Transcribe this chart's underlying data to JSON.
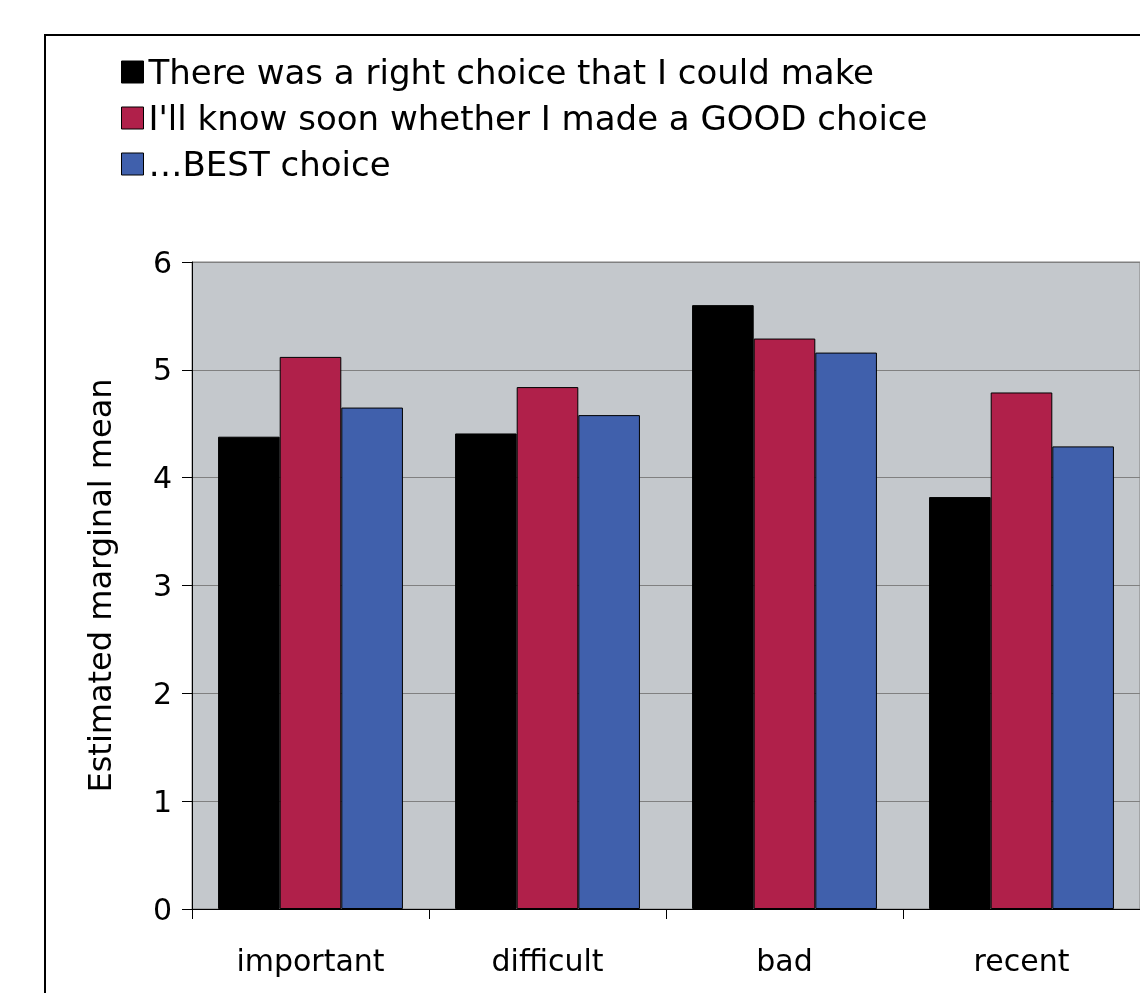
{
  "chart_data": {
    "type": "bar",
    "ylabel": "Estimated marginal mean",
    "categories": [
      "important",
      "difficult",
      "bad",
      "recent"
    ],
    "series": [
      {
        "name": "There was a right choice that I could make",
        "color": "#000000",
        "values": [
          4.38,
          4.41,
          5.6,
          3.82
        ]
      },
      {
        "name": "I'll know soon whether I made a GOOD choice",
        "color": "#b0204a",
        "values": [
          5.12,
          4.84,
          5.29,
          4.79
        ]
      },
      {
        "name": "…BEST choice",
        "color": "#4060ac",
        "values": [
          4.65,
          4.58,
          5.16,
          4.29
        ]
      }
    ],
    "ylim": [
      0,
      6
    ],
    "yticks": [
      0,
      1,
      2,
      3,
      4,
      5,
      6
    ],
    "grid": "y",
    "legend": "top left"
  }
}
